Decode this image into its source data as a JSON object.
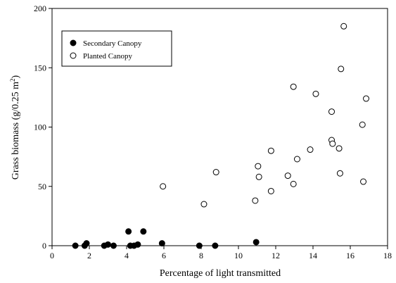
{
  "chart_data": {
    "type": "scatter",
    "xlabel": "Percentage of light transmitted",
    "ylabel_main": "Grass biomass (g/0.25 m",
    "ylabel_sup": "2",
    "ylabel_end": ")",
    "xlim": [
      0,
      18
    ],
    "ylim": [
      0,
      200
    ],
    "xticks": [
      0,
      2,
      4,
      6,
      8,
      10,
      12,
      14,
      16,
      18
    ],
    "yticks": [
      0,
      50,
      100,
      150,
      200
    ],
    "grid": false,
    "legend_position": "top-left",
    "series": [
      {
        "name": "Secondary Canopy",
        "marker": "filled-circle",
        "color": "#000000",
        "points": [
          [
            1.25,
            0
          ],
          [
            1.75,
            0
          ],
          [
            1.85,
            2
          ],
          [
            2.8,
            0
          ],
          [
            3.0,
            1
          ],
          [
            3.3,
            0
          ],
          [
            4.1,
            12
          ],
          [
            4.2,
            0
          ],
          [
            4.4,
            0
          ],
          [
            4.6,
            1
          ],
          [
            4.9,
            12
          ],
          [
            5.9,
            2
          ],
          [
            7.9,
            0
          ],
          [
            8.75,
            0
          ],
          [
            10.95,
            3
          ]
        ]
      },
      {
        "name": "Planted Canopy",
        "marker": "open-circle",
        "color": "#000000",
        "points": [
          [
            5.95,
            50
          ],
          [
            8.15,
            35
          ],
          [
            8.8,
            62
          ],
          [
            10.9,
            38
          ],
          [
            11.05,
            67
          ],
          [
            11.1,
            58
          ],
          [
            11.75,
            80
          ],
          [
            11.75,
            46
          ],
          [
            12.65,
            59
          ],
          [
            12.95,
            52
          ],
          [
            12.95,
            134
          ],
          [
            13.15,
            73
          ],
          [
            13.85,
            81
          ],
          [
            14.15,
            128
          ],
          [
            15.0,
            113
          ],
          [
            15.0,
            89
          ],
          [
            15.05,
            86
          ],
          [
            15.4,
            82
          ],
          [
            15.45,
            61
          ],
          [
            15.5,
            149
          ],
          [
            15.65,
            185
          ],
          [
            16.65,
            102
          ],
          [
            16.7,
            54
          ],
          [
            16.85,
            124
          ]
        ]
      }
    ]
  }
}
